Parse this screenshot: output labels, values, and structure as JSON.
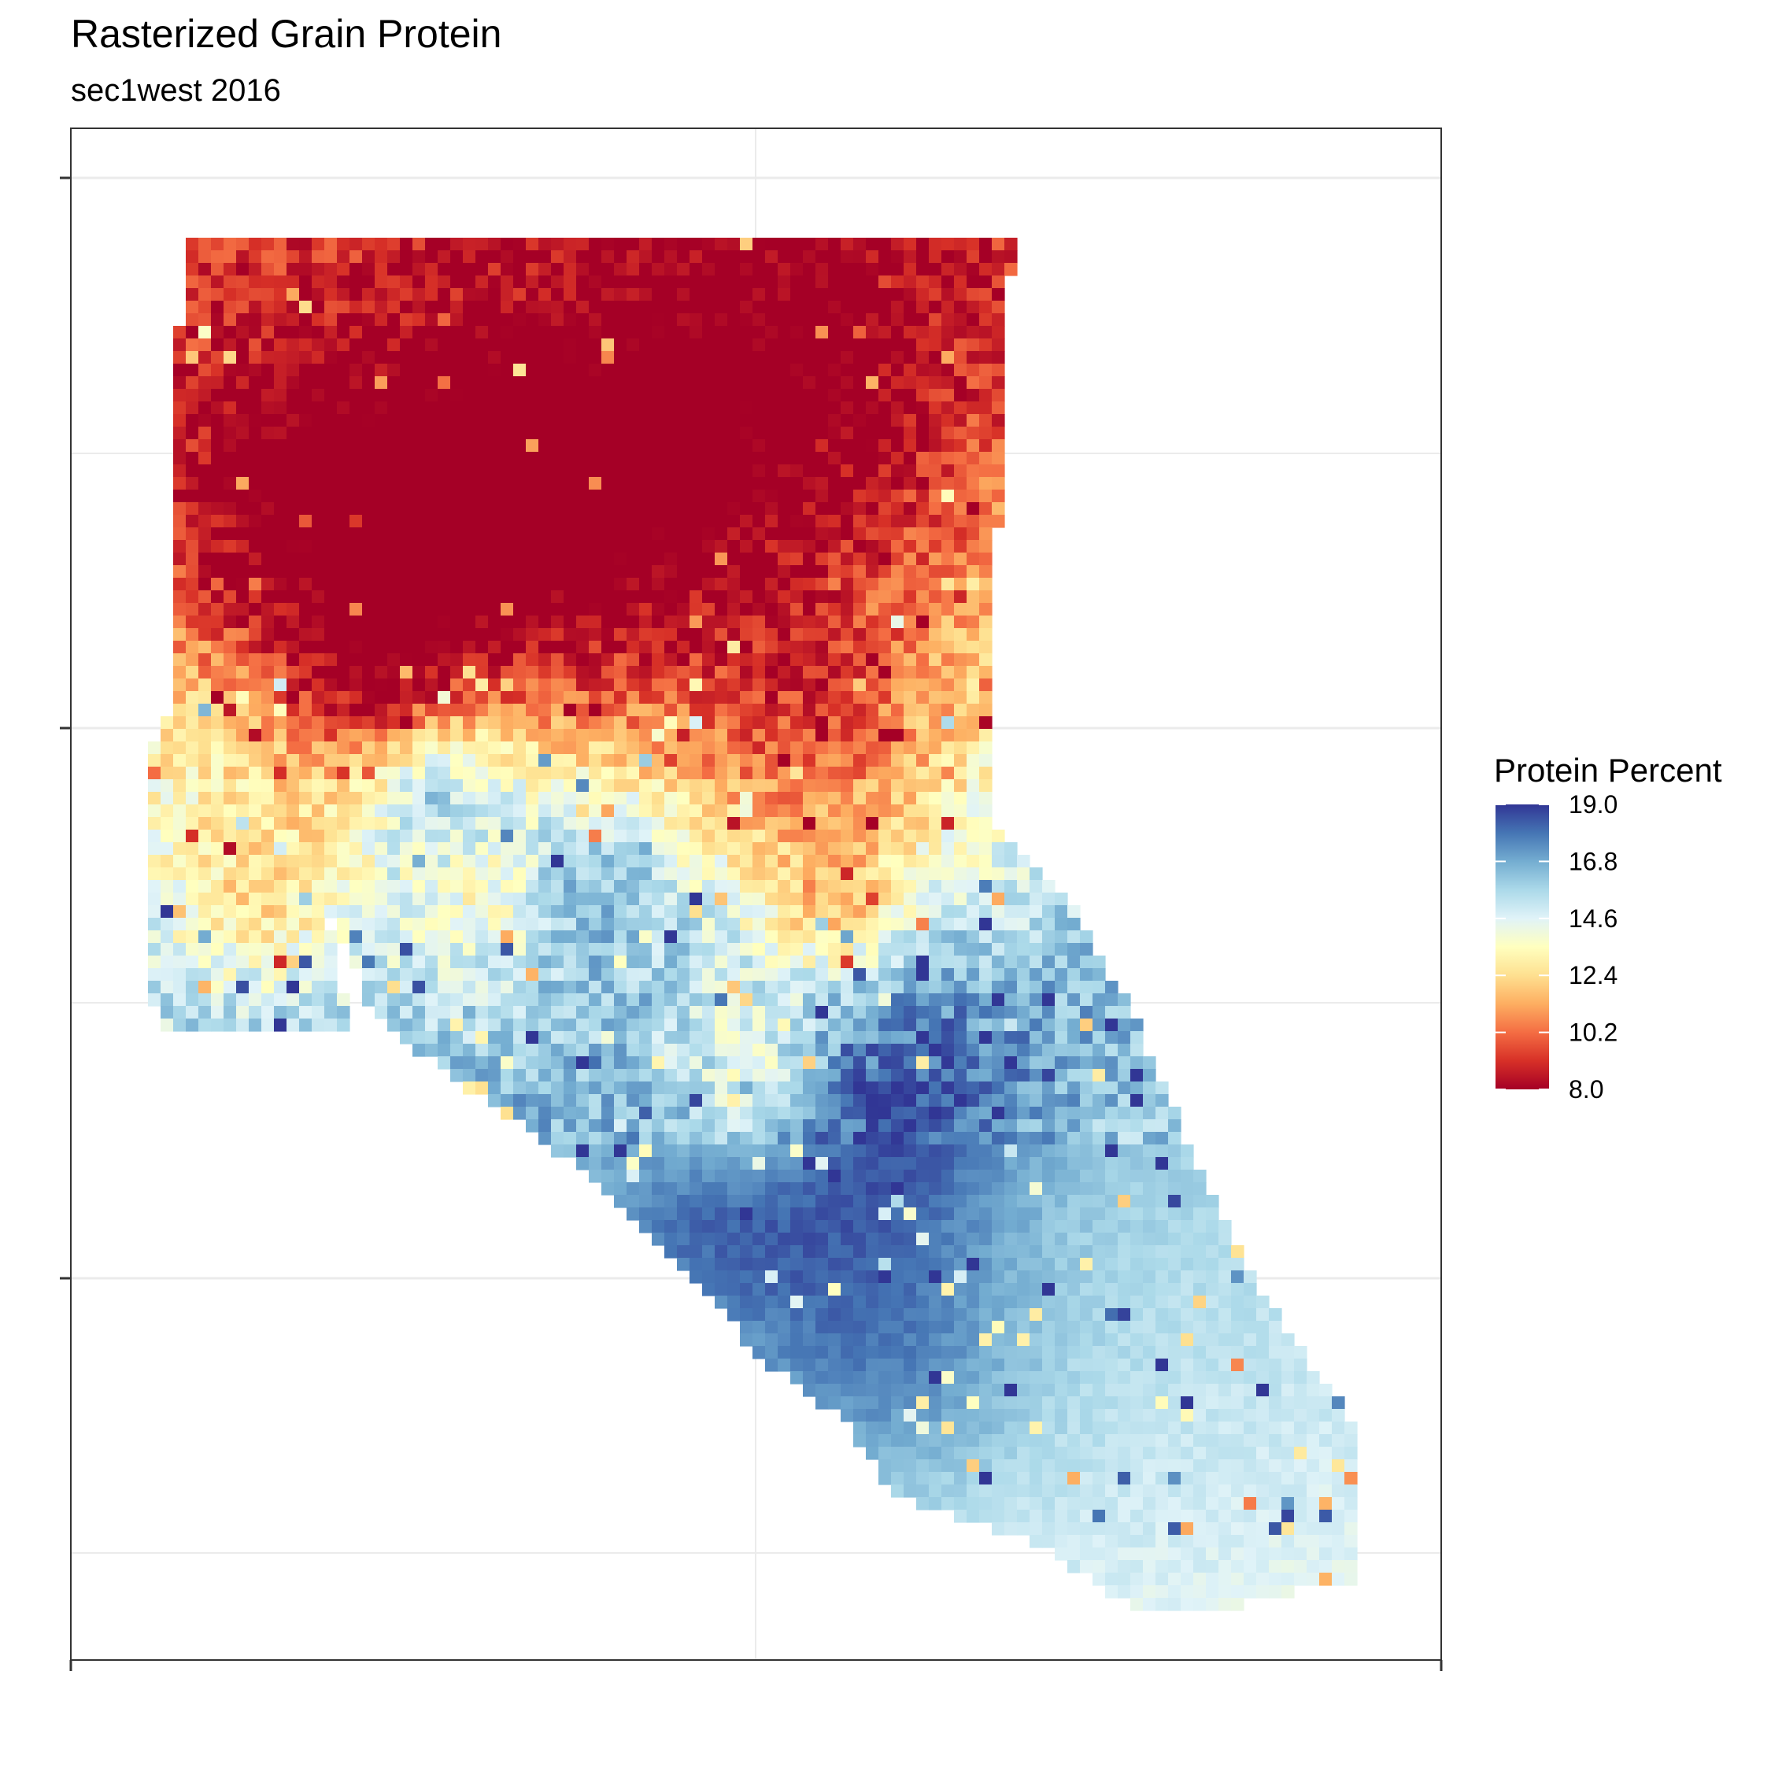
{
  "chart_data": {
    "type": "heatmap",
    "title": "Rasterized Grain Protein",
    "subtitle": "sec1west 2016",
    "xlabel": "",
    "ylabel": "",
    "grid": true,
    "legend": {
      "title": "Protein Percent",
      "position": "right",
      "min": 8.0,
      "max": 19.0,
      "ticks": [
        "19.0",
        "16.8",
        "14.6",
        "12.4",
        "10.2",
        "8.0"
      ],
      "colors": [
        "#a50026",
        "#d73027",
        "#f46d43",
        "#fdae61",
        "#fee090",
        "#ffffbf",
        "#e0f3f8",
        "#abd9e9",
        "#74add1",
        "#4575b4",
        "#313695"
      ]
    },
    "field": {
      "description": "rasterized grain protein field, low values in north, high values in south-east",
      "range": [
        8.0,
        19.0
      ]
    }
  }
}
